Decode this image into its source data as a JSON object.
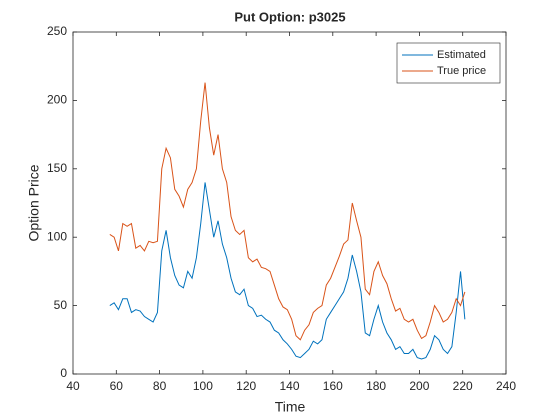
{
  "chart_data": {
    "type": "line",
    "title": "Put Option: p3025",
    "xlabel": "Time",
    "ylabel": "Option Price",
    "x": [
      57,
      59,
      61,
      63,
      65,
      67,
      69,
      71,
      73,
      75,
      77,
      79,
      81,
      83,
      85,
      87,
      89,
      91,
      93,
      95,
      97,
      99,
      101,
      103,
      105,
      107,
      109,
      111,
      113,
      115,
      117,
      119,
      121,
      123,
      125,
      127,
      129,
      131,
      133,
      135,
      137,
      139,
      141,
      143,
      145,
      147,
      149,
      151,
      153,
      155,
      157,
      159,
      161,
      163,
      165,
      167,
      169,
      171,
      173,
      175,
      177,
      179,
      181,
      183,
      185,
      187,
      189,
      191,
      193,
      195,
      197,
      199,
      201,
      203,
      205,
      207,
      209,
      211,
      213,
      215,
      217,
      219,
      221
    ],
    "series": [
      {
        "name": "Estimated",
        "color": "#0072bd",
        "values": [
          50,
          52,
          47,
          55,
          55,
          45,
          47,
          46,
          42,
          40,
          38,
          45,
          90,
          105,
          85,
          72,
          65,
          63,
          75,
          70,
          85,
          110,
          140,
          120,
          100,
          112,
          95,
          85,
          70,
          60,
          58,
          62,
          50,
          48,
          42,
          43,
          40,
          38,
          32,
          30,
          25,
          22,
          18,
          13,
          12,
          15,
          18,
          24,
          22,
          25,
          40,
          45,
          50,
          55,
          60,
          70,
          87,
          75,
          60,
          30,
          28,
          40,
          50,
          38,
          30,
          25,
          18,
          20,
          15,
          15,
          18,
          12,
          11,
          12,
          18,
          28,
          25,
          18,
          15,
          20,
          45,
          75,
          40
        ]
      },
      {
        "name": "True price",
        "color": "#d95319",
        "values": [
          102,
          100,
          90,
          110,
          108,
          110,
          92,
          94,
          90,
          97,
          96,
          97,
          150,
          165,
          158,
          135,
          130,
          122,
          135,
          140,
          150,
          185,
          213,
          180,
          160,
          175,
          150,
          140,
          115,
          105,
          102,
          105,
          85,
          82,
          84,
          78,
          77,
          75,
          65,
          55,
          49,
          47,
          40,
          28,
          25,
          32,
          36,
          45,
          48,
          50,
          65,
          70,
          78,
          86,
          95,
          98,
          125,
          112,
          100,
          62,
          58,
          75,
          82,
          72,
          66,
          55,
          46,
          48,
          40,
          38,
          40,
          32,
          26,
          28,
          38,
          50,
          45,
          38,
          40,
          45,
          55,
          50,
          60
        ]
      }
    ],
    "xlim": [
      40,
      240
    ],
    "xticks": [
      40,
      60,
      80,
      100,
      120,
      140,
      160,
      180,
      200,
      220,
      240
    ],
    "ylim": [
      0,
      250
    ],
    "yticks": [
      0,
      50,
      100,
      150,
      200,
      250
    ],
    "legend": "upper right"
  }
}
